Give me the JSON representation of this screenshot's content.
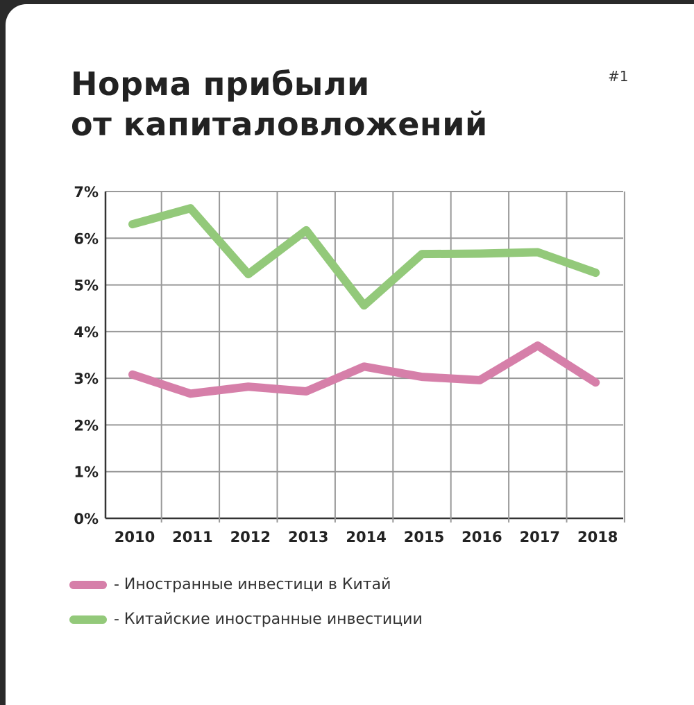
{
  "title_line1": "Норма прибыли",
  "title_line2": "от капиталовложений",
  "page_number": "#1",
  "chart_data": {
    "type": "line",
    "title": "Норма прибыли от капиталовложений",
    "x": [
      "2010",
      "2011",
      "2012",
      "2013",
      "2014",
      "2015",
      "2016",
      "2017",
      "2018"
    ],
    "yticks": [
      "0%",
      "1%",
      "2%",
      "3%",
      "4%",
      "5%",
      "6%",
      "7%"
    ],
    "ylim": [
      0,
      7
    ],
    "grid": true,
    "series": [
      {
        "name": "- Иностранные инвестици в Китай",
        "color": "#d67fa9",
        "values": [
          3.08,
          2.67,
          2.82,
          2.72,
          3.25,
          3.03,
          2.96,
          3.7,
          2.91
        ]
      },
      {
        "name": "- Китайские иностранные инвестиции",
        "color": "#93c97a",
        "values": [
          6.3,
          6.64,
          5.23,
          6.17,
          4.56,
          5.66,
          5.67,
          5.7,
          5.26
        ]
      }
    ],
    "legend_position": "bottom-left"
  }
}
